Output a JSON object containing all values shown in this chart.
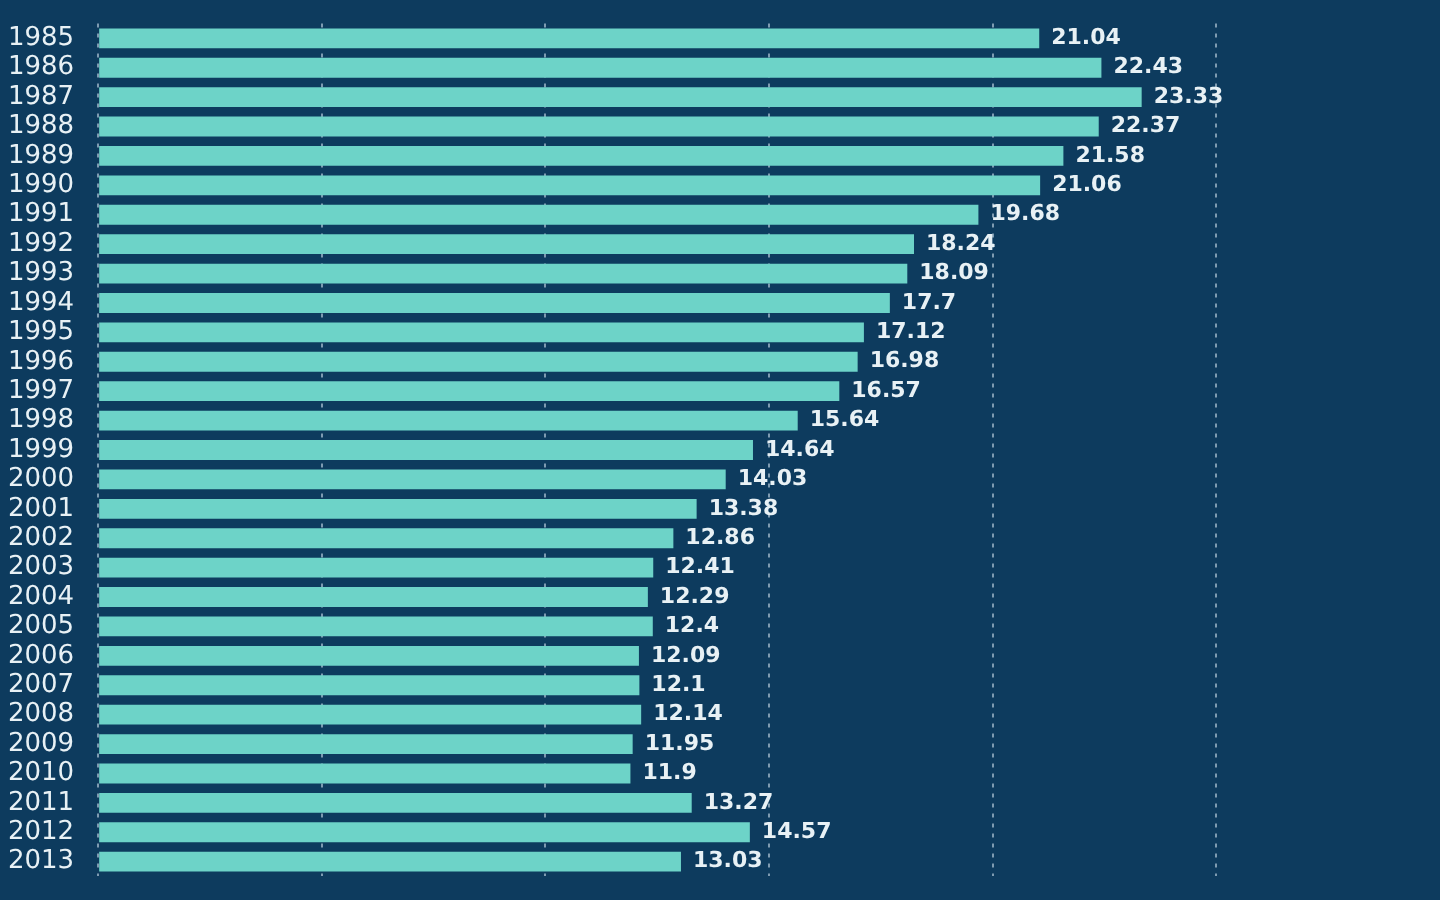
{
  "chart_data": {
    "type": "bar",
    "orientation": "horizontal",
    "categories": [
      "1985",
      "1986",
      "1987",
      "1988",
      "1989",
      "1990",
      "1991",
      "1992",
      "1993",
      "1994",
      "1995",
      "1996",
      "1997",
      "1998",
      "1999",
      "2000",
      "2001",
      "2002",
      "2003",
      "2004",
      "2005",
      "2006",
      "2007",
      "2008",
      "2009",
      "2010",
      "2011",
      "2012",
      "2013"
    ],
    "values": [
      21.04,
      22.43,
      23.33,
      22.37,
      21.58,
      21.06,
      19.68,
      18.24,
      18.09,
      17.7,
      17.12,
      16.98,
      16.57,
      15.64,
      14.64,
      14.03,
      13.38,
      12.86,
      12.41,
      12.29,
      12.4,
      12.09,
      12.1,
      12.14,
      11.95,
      11.9,
      13.27,
      14.57,
      13.03
    ],
    "color": "#6dd3c8",
    "xticks": [
      {
        "value": 0,
        "label": null
      },
      {
        "value": 5,
        "label": null
      },
      {
        "value": 10,
        "label": null
      },
      {
        "value": 15,
        "label": null
      },
      {
        "value": 20,
        "label": null
      },
      {
        "value": 25,
        "label": null
      }
    ],
    "tick_labels": "y",
    "grid": "x",
    "data_labels": true
  }
}
